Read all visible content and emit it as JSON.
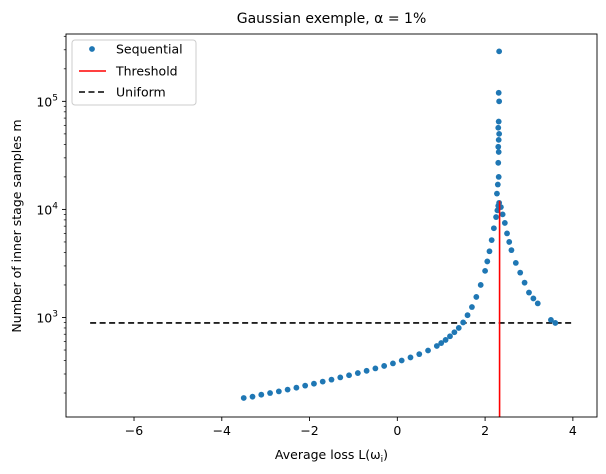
{
  "chart_data": {
    "type": "scatter",
    "title": "Gaussian exemple, α = 1%",
    "xlabel": "Average loss L(ω",
    "xlabel_sub": "i",
    "xlabel_close": ")",
    "ylabel": "Number of inner stage samples m",
    "xlim": [
      -7.55,
      4.55
    ],
    "ylim": [
      120,
      420000
    ],
    "yscale": "log",
    "xticks": [
      -6,
      -4,
      -2,
      0,
      2,
      4
    ],
    "xtick_labels": [
      "−6",
      "−4",
      "−2",
      "0",
      "2",
      "4"
    ],
    "yticks": [
      1000,
      10000,
      100000
    ],
    "ytick_labels": [
      "10",
      "10",
      "10"
    ],
    "ytick_exps": [
      "3",
      "4",
      "5"
    ],
    "grid": false,
    "legend_position": "top-left",
    "series": [
      {
        "name": "Sequential",
        "kind": "points",
        "color": "#1f77b4",
        "points": [
          [
            -3.5,
            180
          ],
          [
            -3.3,
            185
          ],
          [
            -3.1,
            193
          ],
          [
            -2.9,
            200
          ],
          [
            -2.7,
            207
          ],
          [
            -2.5,
            215
          ],
          [
            -2.3,
            224
          ],
          [
            -2.1,
            234
          ],
          [
            -1.9,
            244
          ],
          [
            -1.7,
            255
          ],
          [
            -1.5,
            266
          ],
          [
            -1.3,
            279
          ],
          [
            -1.1,
            292
          ],
          [
            -0.9,
            306
          ],
          [
            -0.7,
            321
          ],
          [
            -0.5,
            338
          ],
          [
            -0.3,
            356
          ],
          [
            -0.1,
            376
          ],
          [
            0.1,
            400
          ],
          [
            0.3,
            427
          ],
          [
            0.5,
            458
          ],
          [
            0.7,
            495
          ],
          [
            0.9,
            545
          ],
          [
            1.0,
            580
          ],
          [
            1.1,
            620
          ],
          [
            1.2,
            670
          ],
          [
            1.3,
            730
          ],
          [
            1.4,
            800
          ],
          [
            1.5,
            900
          ],
          [
            1.6,
            1050
          ],
          [
            1.7,
            1250
          ],
          [
            1.8,
            1550
          ],
          [
            1.9,
            2000
          ],
          [
            2.0,
            2700
          ],
          [
            2.05,
            3300
          ],
          [
            2.1,
            4100
          ],
          [
            2.15,
            5200
          ],
          [
            2.2,
            6700
          ],
          [
            2.25,
            8500
          ],
          [
            2.28,
            9800
          ],
          [
            2.3,
            10800
          ],
          [
            2.32,
            11500
          ],
          [
            2.27,
            14000
          ],
          [
            2.29,
            17000
          ],
          [
            2.31,
            20000
          ],
          [
            2.3,
            27000
          ],
          [
            2.31,
            34000
          ],
          [
            2.3,
            38000
          ],
          [
            2.31,
            44000
          ],
          [
            2.32,
            50000
          ],
          [
            2.3,
            57000
          ],
          [
            2.31,
            65000
          ],
          [
            2.32,
            100000
          ],
          [
            2.31,
            120000
          ],
          [
            2.32,
            290000
          ],
          [
            2.36,
            10500
          ],
          [
            2.4,
            9000
          ],
          [
            2.45,
            7500
          ],
          [
            2.5,
            6000
          ],
          [
            2.55,
            5000
          ],
          [
            2.6,
            4200
          ],
          [
            2.7,
            3200
          ],
          [
            2.8,
            2600
          ],
          [
            2.9,
            2100
          ],
          [
            3.0,
            1700
          ],
          [
            3.1,
            1500
          ],
          [
            3.2,
            1350
          ],
          [
            3.5,
            950
          ],
          [
            3.6,
            890
          ]
        ]
      },
      {
        "name": "Threshold",
        "kind": "line",
        "style": "solid",
        "color": "#ff0000",
        "x": [
          2.33,
          2.33
        ],
        "y": [
          120,
          12000
        ]
      },
      {
        "name": "Uniform",
        "kind": "line",
        "style": "dashed",
        "color": "#000000",
        "x": [
          -7,
          4
        ],
        "y": [
          890,
          890
        ]
      }
    ]
  }
}
